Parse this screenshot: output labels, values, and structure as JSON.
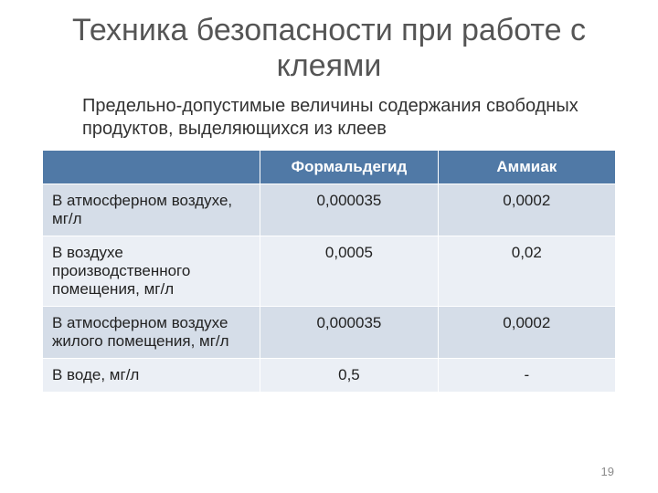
{
  "title": "Техника безопасности при работе с клеями",
  "subtitle": "Предельно-допустимые величины содержания свободных продуктов, выделяющихся из клеев",
  "page_number": "19",
  "table": {
    "type": "table",
    "background_color": "#ffffff",
    "header_bg": "#5079a6",
    "header_fg": "#ffffff",
    "row_band_a": "#d5dde8",
    "row_band_b": "#ebeff5",
    "border_color": "#ffffff",
    "title_fontsize": 34,
    "subtitle_fontsize": 20,
    "cell_fontsize": 17,
    "columns": [
      "",
      "Формальдегид",
      "Аммиак"
    ],
    "col_widths_pct": [
      38,
      31,
      31
    ],
    "rows": [
      {
        "label": "В атмосферном воздухе, мг/л",
        "values": [
          "0,000035",
          "0,0002"
        ]
      },
      {
        "label": "В воздухе производственного помещения, мг/л",
        "values": [
          "0,0005",
          "0,02"
        ]
      },
      {
        "label": "В атмосферном воздухе жилого помещения, мг/л",
        "values": [
          "0,000035",
          "0,0002"
        ]
      },
      {
        "label": "В воде, мг/л",
        "values": [
          "0,5",
          "-"
        ]
      }
    ]
  }
}
